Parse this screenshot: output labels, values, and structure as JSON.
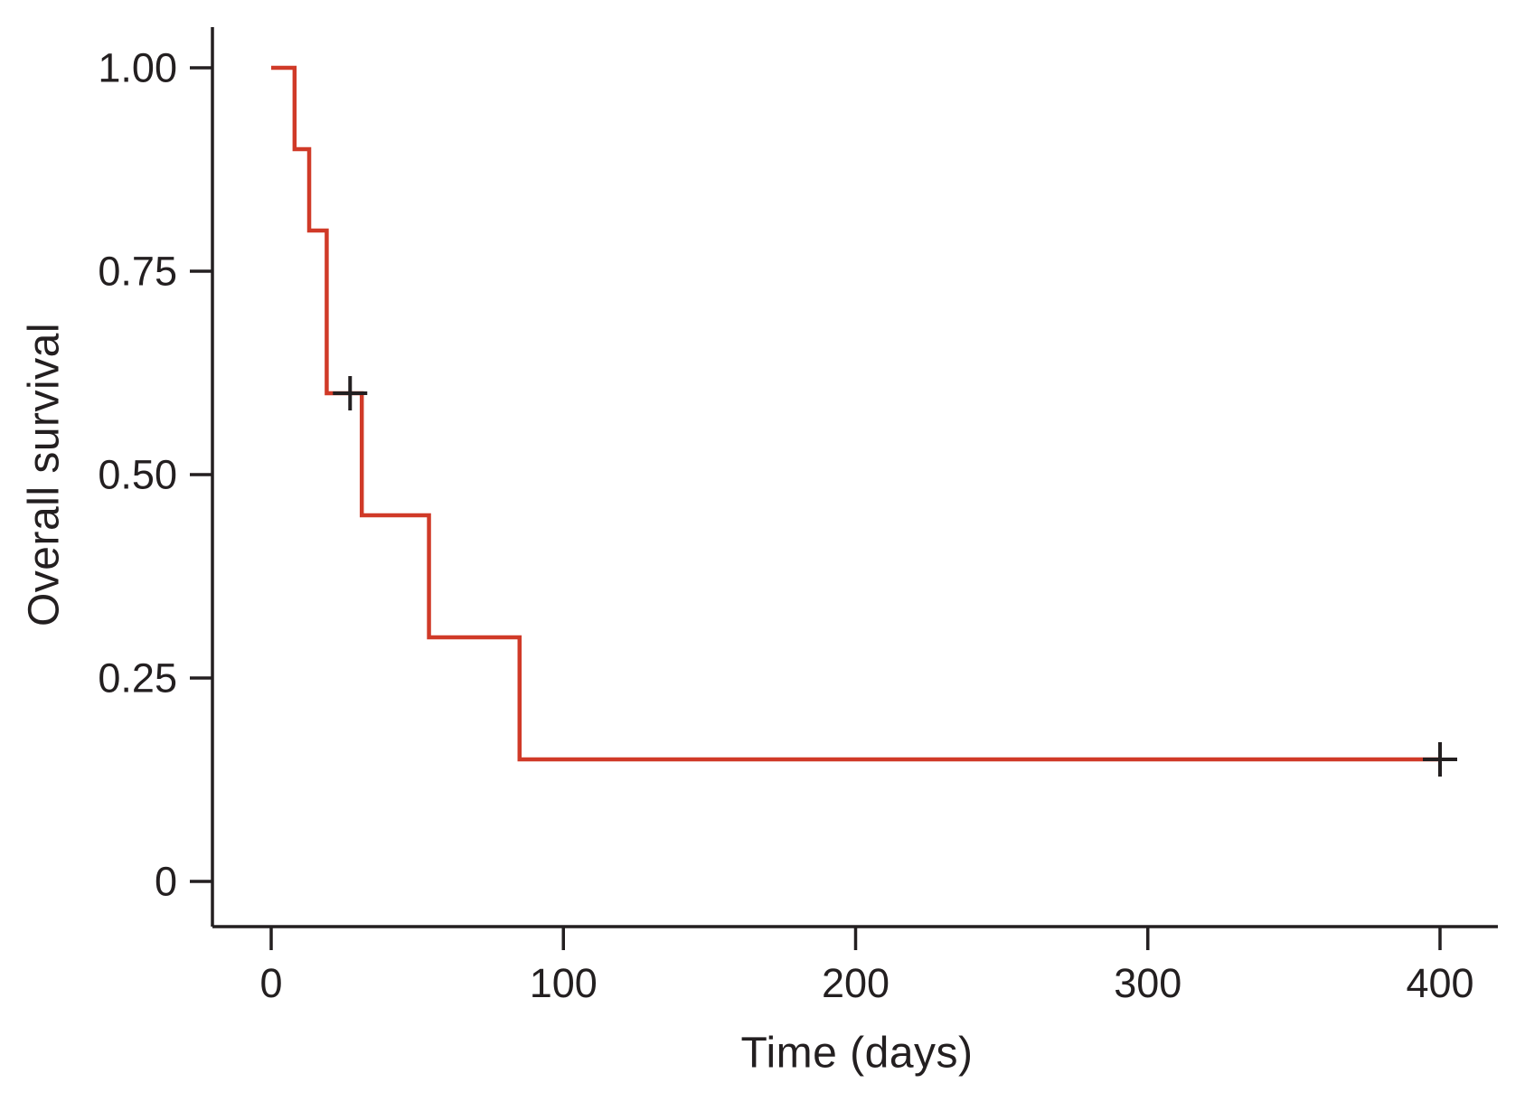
{
  "figure": {
    "background": "#ffffff",
    "curve_color": "#d03a28",
    "axis_color": "#231f20"
  },
  "chart_data": {
    "type": "line",
    "subtype": "kaplan-meier-step-function",
    "title": "",
    "xlabel": "Time (days)",
    "ylabel": "Overall survival",
    "xlim": [
      0,
      420
    ],
    "ylim": [
      0,
      1.0
    ],
    "grid": false,
    "legend": "none",
    "xtick_values": [
      0,
      100,
      200,
      300,
      400
    ],
    "xtick_labels": [
      "0",
      "100",
      "200",
      "300",
      "400"
    ],
    "ytick_values": [
      0,
      0.25,
      0.5,
      0.75,
      1.0
    ],
    "ytick_labels": [
      "0",
      "0.25",
      "0.50",
      "0.75",
      "1.00"
    ],
    "series": [
      {
        "name": "Overall survival",
        "color": "#d03a28",
        "step": "post",
        "points": [
          {
            "time": 0,
            "survival": 1.0
          },
          {
            "time": 8,
            "survival": 0.9
          },
          {
            "time": 13,
            "survival": 0.8
          },
          {
            "time": 19,
            "survival": 0.6
          },
          {
            "time": 31,
            "survival": 0.45
          },
          {
            "time": 54,
            "survival": 0.3
          },
          {
            "time": 85,
            "survival": 0.15
          },
          {
            "time": 400,
            "survival": 0.15
          }
        ],
        "censor_marks": [
          {
            "time": 27,
            "survival": 0.6
          },
          {
            "time": 400,
            "survival": 0.15
          }
        ]
      }
    ]
  }
}
